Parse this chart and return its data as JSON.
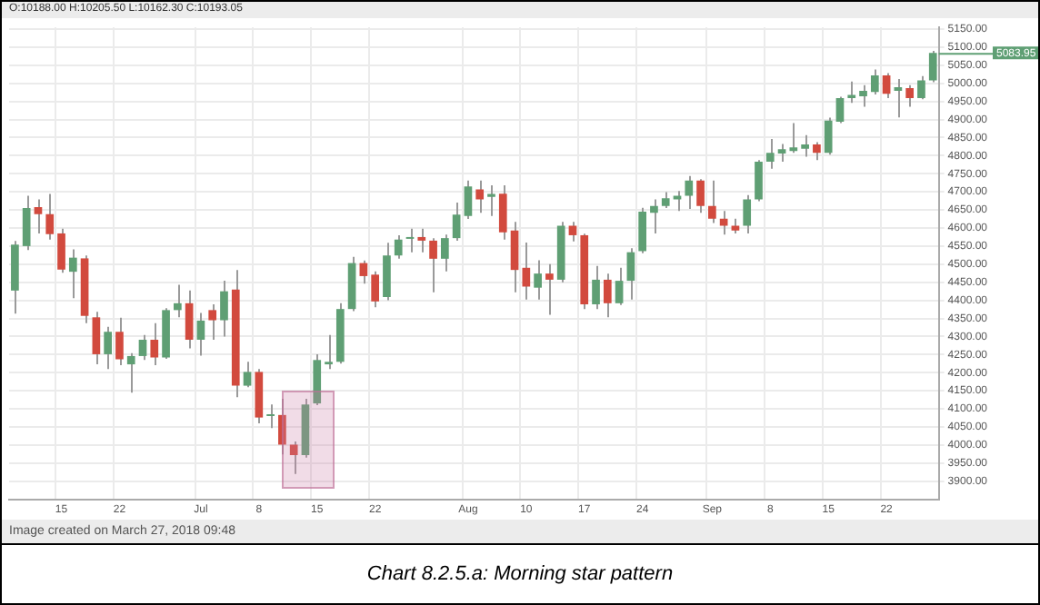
{
  "chart_data": {
    "type": "candlestick",
    "title": "Chart 8.2.5.a: Morning star pattern",
    "annotations": [
      "O:10188.00 H:10205.50 L:10162.30 C:10193.05",
      "Image created on March 27, 2018 09:48",
      "5083.95"
    ],
    "categories": [
      null,
      null,
      null,
      null,
      "15",
      null,
      null,
      null,
      null,
      "22",
      null,
      null,
      null,
      null,
      null,
      null,
      "Jul",
      null,
      null,
      null,
      null,
      "8",
      null,
      null,
      null,
      null,
      "15",
      null,
      null,
      null,
      null,
      "22",
      null,
      null,
      null,
      null,
      null,
      null,
      null,
      "Aug",
      null,
      null,
      null,
      null,
      "10",
      null,
      null,
      null,
      null,
      "17",
      null,
      null,
      null,
      null,
      "24",
      null,
      null,
      null,
      null,
      null,
      "Sep",
      null,
      null,
      null,
      null,
      "8",
      null,
      null,
      null,
      null,
      "15",
      null,
      null,
      null,
      null,
      "22",
      null,
      null,
      null,
      null
    ],
    "ohlc": [
      [
        4427,
        4564,
        4363,
        4554
      ],
      [
        4550,
        4689,
        4539,
        4655
      ],
      [
        4658,
        4679,
        4585,
        4638
      ],
      [
        4638,
        4694,
        4568,
        4583
      ],
      [
        4585,
        4598,
        4476,
        4485
      ],
      [
        4479,
        4541,
        4406,
        4518
      ],
      [
        4516,
        4524,
        4337,
        4357
      ],
      [
        4353,
        4368,
        4223,
        4251
      ],
      [
        4251,
        4327,
        4210,
        4313
      ],
      [
        4313,
        4352,
        4221,
        4237
      ],
      [
        4223,
        4254,
        4145,
        4246
      ],
      [
        4246,
        4304,
        4235,
        4291
      ],
      [
        4291,
        4337,
        4221,
        4242
      ],
      [
        4242,
        4378,
        4238,
        4373
      ],
      [
        4373,
        4443,
        4353,
        4392
      ],
      [
        4392,
        4427,
        4267,
        4291
      ],
      [
        4291,
        4365,
        4247,
        4344
      ],
      [
        4373,
        4389,
        4291,
        4345
      ],
      [
        4345,
        4454,
        4300,
        4425
      ],
      [
        4430,
        4484,
        4132,
        4164
      ],
      [
        4164,
        4230,
        4160,
        4202
      ],
      [
        4202,
        4210,
        4060,
        4076
      ],
      [
        4080,
        4112,
        4047,
        4083
      ],
      [
        4083,
        4128,
        3974,
        4001
      ],
      [
        4001,
        4010,
        3920,
        3972
      ],
      [
        3972,
        4128,
        3965,
        4112
      ],
      [
        4115,
        4251,
        4110,
        4235
      ],
      [
        4223,
        4304,
        4210,
        4230
      ],
      [
        4230,
        4392,
        4225,
        4376
      ],
      [
        4376,
        4520,
        4370,
        4503
      ],
      [
        4503,
        4510,
        4446,
        4467
      ],
      [
        4471,
        4480,
        4381,
        4397
      ],
      [
        4409,
        4559,
        4400,
        4524
      ],
      [
        4524,
        4580,
        4515,
        4568
      ],
      [
        4570,
        4598,
        4533,
        4575
      ],
      [
        4575,
        4598,
        4533,
        4565
      ],
      [
        4565,
        4572,
        4422,
        4515
      ],
      [
        4515,
        4582,
        4480,
        4572
      ],
      [
        4572,
        4670,
        4565,
        4637
      ],
      [
        4633,
        4731,
        4625,
        4715
      ],
      [
        4707,
        4731,
        4642,
        4679
      ],
      [
        4686,
        4718,
        4633,
        4694
      ],
      [
        4695,
        4718,
        4568,
        4588
      ],
      [
        4593,
        4617,
        4422,
        4484
      ],
      [
        4490,
        4560,
        4402,
        4438
      ],
      [
        4435,
        4511,
        4402,
        4474
      ],
      [
        4474,
        4500,
        4360,
        4457
      ],
      [
        4457,
        4617,
        4450,
        4606
      ],
      [
        4606,
        4617,
        4563,
        4580
      ],
      [
        4580,
        4584,
        4376,
        4389
      ],
      [
        4389,
        4495,
        4376,
        4457
      ],
      [
        4457,
        4474,
        4353,
        4392
      ],
      [
        4392,
        4490,
        4387,
        4454
      ],
      [
        4454,
        4544,
        4402,
        4533
      ],
      [
        4536,
        4656,
        4530,
        4645
      ],
      [
        4642,
        4679,
        4585,
        4661
      ],
      [
        4661,
        4699,
        4655,
        4682
      ],
      [
        4679,
        4702,
        4647,
        4689
      ],
      [
        4689,
        4744,
        4653,
        4731
      ],
      [
        4731,
        4735,
        4642,
        4661
      ],
      [
        4661,
        4731,
        4614,
        4626
      ],
      [
        4626,
        4647,
        4582,
        4606
      ],
      [
        4606,
        4626,
        4585,
        4593
      ],
      [
        4606,
        4691,
        4585,
        4679
      ],
      [
        4679,
        4788,
        4674,
        4783
      ],
      [
        4783,
        4846,
        4764,
        4808
      ],
      [
        4806,
        4832,
        4783,
        4818
      ],
      [
        4813,
        4890,
        4808,
        4823
      ],
      [
        4819,
        4857,
        4797,
        4831
      ],
      [
        4831,
        4837,
        4788,
        4808
      ],
      [
        4808,
        4905,
        4803,
        4897
      ],
      [
        4894,
        4963,
        4890,
        4959
      ],
      [
        4959,
        5005,
        4946,
        4968
      ],
      [
        4964,
        4995,
        4935,
        4979
      ],
      [
        4976,
        5038,
        4969,
        5022
      ],
      [
        5022,
        5028,
        4959,
        4971
      ],
      [
        4979,
        5012,
        4906,
        4989
      ],
      [
        4987,
        4995,
        4935,
        4959
      ],
      [
        4959,
        5020,
        4956,
        5008
      ],
      [
        5008,
        5090,
        5003,
        5083.95
      ]
    ],
    "colors": [
      "#5f9f74",
      "#5f9f74",
      "#d24a3e",
      "#d24a3e",
      "#d24a3e",
      "#5f9f74",
      "#d24a3e",
      "#d24a3e",
      "#5f9f74",
      "#d24a3e",
      "#5f9f74",
      "#5f9f74",
      "#d24a3e",
      "#5f9f74",
      "#5f9f74",
      "#d24a3e",
      "#5f9f74",
      "#d24a3e",
      "#5f9f74",
      "#d24a3e",
      "#5f9f74",
      "#d24a3e",
      "#5f9f74",
      "#d24a3e",
      "#d24a3e",
      "#5f9f74",
      "#5f9f74",
      "#5f9f74",
      "#5f9f74",
      "#5f9f74",
      "#d24a3e",
      "#d24a3e",
      "#5f9f74",
      "#5f9f74",
      "#5f9f74",
      "#d24a3e",
      "#d24a3e",
      "#5f9f74",
      "#5f9f74",
      "#5f9f74",
      "#d24a3e",
      "#5f9f74",
      "#d24a3e",
      "#d24a3e",
      "#d24a3e",
      "#5f9f74",
      "#d24a3e",
      "#5f9f74",
      "#d24a3e",
      "#d24a3e",
      "#5f9f74",
      "#d24a3e",
      "#5f9f74",
      "#5f9f74",
      "#5f9f74",
      "#5f9f74",
      "#5f9f74",
      "#5f9f74",
      "#5f9f74",
      "#d24a3e",
      "#d24a3e",
      "#d24a3e",
      "#d24a3e",
      "#5f9f74",
      "#5f9f74",
      "#5f9f74",
      "#5f9f74",
      "#5f9f74",
      "#5f9f74",
      "#d24a3e",
      "#5f9f74",
      "#5f9f74",
      "#5f9f74",
      "#5f9f74",
      "#5f9f74",
      "#d24a3e",
      "#5f9f74",
      "#d24a3e",
      "#5f9f74",
      "#5f9f74"
    ],
    "ylim": [
      3850,
      5155
    ],
    "yticks": [
      {
        "value": 3900,
        "label": "3900.00"
      },
      {
        "value": 3950,
        "label": "3950.00"
      },
      {
        "value": 4000,
        "label": "4000.00"
      },
      {
        "value": 4050,
        "label": "4050.00"
      },
      {
        "value": 4100,
        "label": "4100.00"
      },
      {
        "value": 4150,
        "label": "4150.00"
      },
      {
        "value": 4200,
        "label": "4200.00"
      },
      {
        "value": 4250,
        "label": "4250.00"
      },
      {
        "value": 4300,
        "label": "4300.00"
      },
      {
        "value": 4350,
        "label": "4350.00"
      },
      {
        "value": 4400,
        "label": "4400.00"
      },
      {
        "value": 4450,
        "label": "4450.00"
      },
      {
        "value": 4500,
        "label": "4500.00"
      },
      {
        "value": 4550,
        "label": "4550.00"
      },
      {
        "value": 4600,
        "label": "4600.00"
      },
      {
        "value": 4650,
        "label": "4650.00"
      },
      {
        "value": 4700,
        "label": "4700.00"
      },
      {
        "value": 4750,
        "label": "4750.00"
      },
      {
        "value": 4800,
        "label": "4800.00"
      },
      {
        "value": 4850,
        "label": "4850.00"
      },
      {
        "value": 4900,
        "label": "4900.00"
      },
      {
        "value": 4950,
        "label": "4950.00"
      },
      {
        "value": 5000,
        "label": "5000.00"
      },
      {
        "value": 5050,
        "label": "5050.00"
      },
      {
        "value": 5100,
        "label": "5100.00"
      },
      {
        "value": 5150,
        "label": "5150.00"
      }
    ],
    "grid": true,
    "legend": false
  }
}
